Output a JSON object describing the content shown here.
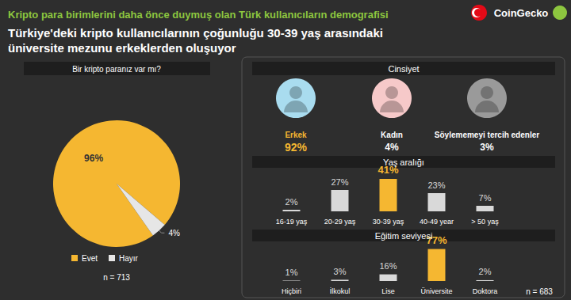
{
  "header": {
    "title": "Kripto para birimlerini daha önce duymuş olan Türk kullanıcıların demografisi",
    "subtitle": "Türkiye'deki kripto kullanıcılarının çoğunluğu 30-39 yaş arasındaki üniversite mezunu erkeklerden oluşuyor",
    "brand": "CoinGecko"
  },
  "chart_data": [
    {
      "type": "pie",
      "title": "Bir kripto paranız var mı?",
      "categories": [
        "Evet",
        "Hayır"
      ],
      "values": [
        96,
        4
      ],
      "value_labels": [
        "96%",
        "4%"
      ],
      "colors": [
        "#f5b731",
        "#e6e6e6"
      ],
      "data_labels": true,
      "legend": "bottom",
      "annotation": "n = 713"
    },
    {
      "type": "icons",
      "title": "Cinsiyet",
      "categories": [
        "Erkek",
        "Kadın",
        "Söylememeyi tercih edenler"
      ],
      "values": [
        92,
        4,
        3
      ],
      "value_labels": [
        "92%",
        "4%",
        "3%"
      ],
      "colors": [
        "#a9dcef",
        "#f6c9c9",
        "#9a9a9a"
      ],
      "data_labels": true
    },
    {
      "type": "bar",
      "title": "Yaş aralığı",
      "categories": [
        "16-19 yaş",
        "20-29 yaş",
        "30-39 yaş",
        "40-49 year",
        "> 50 yaş"
      ],
      "values": [
        2,
        27,
        41,
        23,
        7
      ],
      "value_labels": [
        "2%",
        "27%",
        "41%",
        "23%",
        "7%"
      ],
      "colors": [
        "#d9d9d9",
        "#d9d9d9",
        "#f5b731",
        "#d9d9d9",
        "#d9d9d9"
      ],
      "ylim": [
        0,
        45
      ],
      "tick_labels": "x",
      "data_labels": true
    },
    {
      "type": "bar",
      "title": "Eğitim seviyesi",
      "categories": [
        "Hiçbiri",
        "İlkokul",
        "Lise",
        "Üniversite",
        "Doktora"
      ],
      "values": [
        1,
        3,
        16,
        77,
        2
      ],
      "value_labels": [
        "1%",
        "3%",
        "16%",
        "77%",
        "2%"
      ],
      "colors": [
        "#d9d9d9",
        "#d9d9d9",
        "#d9d9d9",
        "#f5b731",
        "#d9d9d9"
      ],
      "ylim": [
        0,
        80
      ],
      "tick_labels": "x",
      "data_labels": true,
      "annotation": "n = 683"
    }
  ]
}
